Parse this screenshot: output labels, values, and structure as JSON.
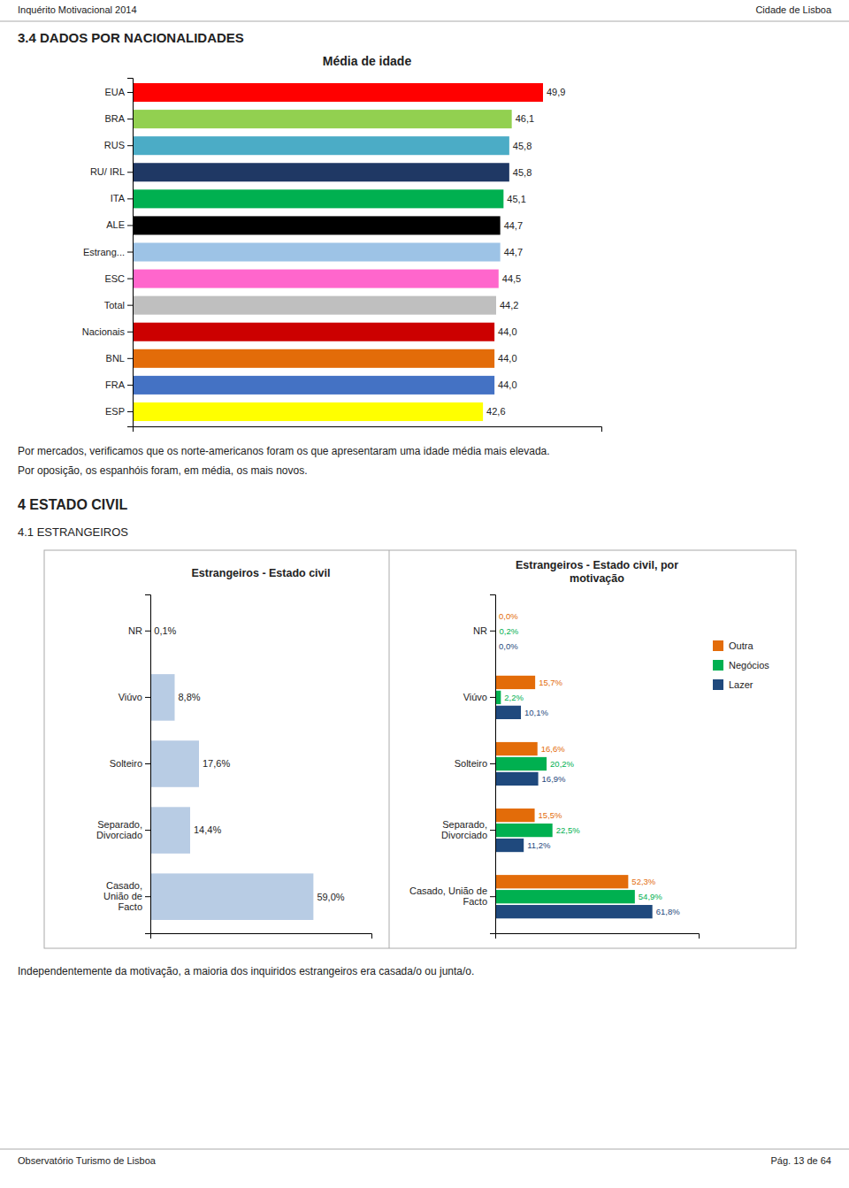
{
  "texts": {
    "header_left": "Inquérito Motivacional 2014",
    "header_right": "Cidade de Lisboa",
    "section_title": "3.4 DADOS POR NACIONALIDADES",
    "text1": "Por mercados, verificamos que os norte-americanos foram os que apresentaram uma idade média mais elevada.",
    "text2": "Por oposição, os espanhóis foram, em média, os mais novos.",
    "section2_title": "4   ESTADO CIVIL",
    "section2_sub": "4.1 ESTRANGEIROS",
    "text3": "Independentemente da motivação, a maioria dos inquiridos estrangeiros era casada/o ou junta/o.",
    "footer_left": "Observatório Turismo de Lisboa",
    "footer_right": "Pág. 13 de 64"
  },
  "chart_data": [
    {
      "type": "bar",
      "orientation": "horizontal",
      "title": "Média de idade",
      "categories": [
        "EUA",
        "BRA",
        "RUS",
        "RU/ IRL",
        "ITA",
        "ALE",
        "Estrang...",
        "ESC",
        "Total",
        "Nacionais",
        "BNL",
        "FRA",
        "ESP"
      ],
      "values": [
        49.9,
        46.1,
        45.8,
        45.8,
        45.1,
        44.7,
        44.7,
        44.5,
        44.2,
        44.0,
        44.0,
        44.0,
        42.6
      ],
      "value_labels": [
        "49,9",
        "46,1",
        "45,8",
        "45,8",
        "45,1",
        "44,7",
        "44,7",
        "44,5",
        "44,2",
        "44,0",
        "44,0",
        "44,0",
        "42,6"
      ],
      "colors": [
        "#ff0000",
        "#92d050",
        "#4bacc6",
        "#1f3864",
        "#00b050",
        "#000000",
        "#9dc3e6",
        "#ff66cc",
        "#bfbfbf",
        "#cc0000",
        "#e36c09",
        "#4472c4",
        "#ffff00"
      ],
      "xlim": [
        0,
        57
      ],
      "data_labels": true,
      "tick_labels": "y",
      "grid": false
    },
    {
      "type": "bar",
      "orientation": "horizontal",
      "title": "Estrangeiros - Estado civil",
      "categories": [
        "NR",
        "Viúvo",
        "Solteiro",
        "Separado,\nDivorciado",
        "Casado,\nUnião de\nFacto"
      ],
      "values": [
        0.1,
        8.8,
        17.6,
        14.4,
        59.0
      ],
      "value_labels": [
        "0,1%",
        "8,8%",
        "17,6%",
        "14,4%",
        "59,0%"
      ],
      "color": "#b8cce4",
      "xlim": [
        0,
        80
      ],
      "data_labels": true,
      "tick_labels": "y",
      "grid": false
    },
    {
      "type": "bar",
      "orientation": "horizontal",
      "title": "Estrangeiros - Estado civil, por\nmotivação",
      "categories": [
        "NR",
        "Viúvo",
        "Solteiro",
        "Separado,\nDivorciado",
        "Casado, União de\nFacto"
      ],
      "series": [
        {
          "name": "Outra",
          "color": "#e36c09",
          "values": [
            0.0,
            15.7,
            16.6,
            15.5,
            52.3
          ],
          "value_labels": [
            "0,0%",
            "15,7%",
            "16,6%",
            "15,5%",
            "52,3%"
          ]
        },
        {
          "name": "Negócios",
          "color": "#00b050",
          "values": [
            0.2,
            2.2,
            20.2,
            22.5,
            54.9
          ],
          "value_labels": [
            "0,2%",
            "2,2%",
            "20,2%",
            "22,5%",
            "54,9%"
          ]
        },
        {
          "name": "Lazer",
          "color": "#1f497d",
          "values": [
            0.0,
            10.1,
            16.9,
            11.2,
            61.8
          ],
          "value_labels": [
            "0,0%",
            "10,1%",
            "16,9%",
            "11,2%",
            "61,8%"
          ]
        }
      ],
      "xlim": [
        0,
        80
      ],
      "data_labels": true,
      "tick_labels": "y",
      "legend": "right",
      "grid": false
    }
  ]
}
